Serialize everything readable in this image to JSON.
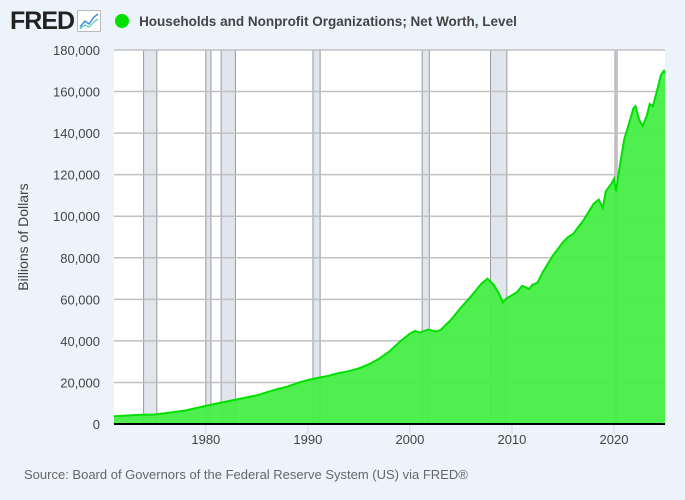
{
  "header": {
    "logo": "FRED",
    "logo_icon": "line-chart-icon",
    "title": "Households and Nonprofit Organizations; Net Worth, Level"
  },
  "source": "Source: Board of Governors of the Federal Reserve System (US) via FRED®",
  "colors": {
    "series": "#00e000",
    "fill": "#44ee44",
    "recession": "#e1e6ec",
    "grid": "#c0c0c0"
  },
  "chart_data": {
    "type": "area",
    "title": "Households and Nonprofit Organizations; Net Worth, Level",
    "ylabel": "Billions of Dollars",
    "xlabel": "",
    "xlim": [
      1971,
      2025
    ],
    "ylim": [
      0,
      180000
    ],
    "grid": "horizontal",
    "xticks": [
      1980,
      1990,
      2000,
      2010,
      2020
    ],
    "yticks": [
      0,
      20000,
      40000,
      60000,
      80000,
      100000,
      120000,
      140000,
      160000,
      180000
    ],
    "ytick_labels": [
      "0",
      "20,000",
      "40,000",
      "60,000",
      "80,000",
      "100,000",
      "120,000",
      "140,000",
      "160,000",
      "180,000"
    ],
    "recessions": [
      [
        1973.9,
        1975.2
      ],
      [
        1980.0,
        1980.5
      ],
      [
        1981.5,
        1982.9
      ],
      [
        1990.5,
        1991.2
      ],
      [
        2001.2,
        2001.9
      ],
      [
        2007.9,
        2009.5
      ],
      [
        2020.1,
        2020.3
      ]
    ],
    "x": [
      1971.0,
      1973.0,
      1973.9,
      1974.9,
      1976,
      1978,
      1980,
      1981,
      1982,
      1983,
      1985,
      1986,
      1987,
      1988,
      1989,
      1990,
      1991,
      1992,
      1993,
      1994,
      1995,
      1996,
      1997,
      1998,
      1999,
      2000,
      2000.5,
      2001,
      2001.8,
      2002.5,
      2003,
      2004,
      2005,
      2006,
      2007,
      2007.6,
      2008.2,
      2008.7,
      2009.1,
      2009.5,
      2010,
      2010.5,
      2011,
      2011.7,
      2012,
      2012.5,
      2013,
      2014,
      2015,
      2015.5,
      2016,
      2017,
      2018,
      2018.5,
      2018.9,
      2019.2,
      2019.8,
      2020.0,
      2020.2,
      2020.5,
      2021,
      2021.5,
      2021.9,
      2022.1,
      2022.5,
      2022.8,
      2023.2,
      2023.5,
      2023.8,
      2024.2,
      2024.6,
      2024.9,
      2025.0
    ],
    "values": [
      3700,
      4300,
      4500,
      4500,
      5200,
      6500,
      8700,
      9800,
      10800,
      11800,
      13800,
      15300,
      16800,
      18000,
      19800,
      21200,
      22200,
      23200,
      24500,
      25400,
      26800,
      28800,
      31500,
      35000,
      39500,
      43500,
      44800,
      44000,
      45500,
      44500,
      45200,
      50000,
      56000,
      61500,
      67500,
      70000,
      67000,
      63000,
      58500,
      60500,
      62000,
      63500,
      66500,
      65000,
      67000,
      68000,
      73000,
      81000,
      87500,
      90000,
      91500,
      98000,
      106000,
      108000,
      104000,
      112000,
      116000,
      118000,
      112000,
      122000,
      137000,
      145000,
      152000,
      153000,
      146000,
      143500,
      148000,
      154000,
      153000,
      160000,
      168000,
      170000,
      169000
    ]
  }
}
